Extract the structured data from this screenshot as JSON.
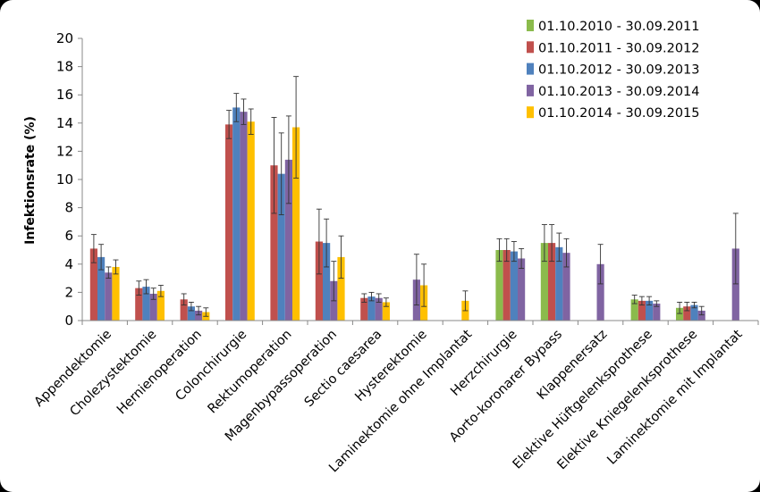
{
  "chart_data": {
    "type": "bar",
    "title": "",
    "xlabel": "",
    "ylabel": "Infektionsrate (%)",
    "ylim": [
      0,
      20
    ],
    "yticks": [
      "0",
      "2",
      "4",
      "6",
      "8",
      "10",
      "12",
      "14",
      "16",
      "18",
      "20"
    ],
    "legend_position": "top-right",
    "grid": false,
    "categories": [
      "Appendektomie",
      "Cholezystektomie",
      "Hernienoperation",
      "Colonchirurgie",
      "Rektumoperation",
      "Magenbypassoperation",
      "Sectio caesarea",
      "Hysterektomie",
      "Laminektomie ohne Implantat",
      "Herzchirurgie",
      "Aorto-koronarer Bypass",
      "Klappenersatz",
      "Elektive Hüftgelenksprothese",
      "Elektive Kniegelenksprothese",
      "Laminektomie mit Implantat"
    ],
    "series": [
      {
        "name": "01.10.2010 - 30.09.2011",
        "color": "#8bbb4c",
        "values": [
          null,
          null,
          null,
          null,
          null,
          null,
          null,
          null,
          null,
          5.0,
          5.5,
          null,
          1.5,
          0.9,
          null
        ],
        "errors": [
          null,
          null,
          null,
          null,
          null,
          null,
          null,
          null,
          null,
          0.8,
          1.3,
          null,
          0.3,
          0.4,
          null
        ]
      },
      {
        "name": "01.10.2011 - 30.09.2012",
        "color": "#c0504d",
        "values": [
          5.1,
          2.3,
          1.5,
          13.9,
          11.0,
          5.6,
          1.6,
          null,
          null,
          5.0,
          5.5,
          null,
          1.4,
          1.0,
          null
        ],
        "errors": [
          1.0,
          0.5,
          0.4,
          1.0,
          3.4,
          2.3,
          0.3,
          null,
          null,
          0.8,
          1.3,
          null,
          0.3,
          0.3,
          null
        ]
      },
      {
        "name": "01.10.2012 - 30.09.2013",
        "color": "#4f81bd",
        "values": [
          4.5,
          2.4,
          1.0,
          15.1,
          10.4,
          5.5,
          1.7,
          null,
          null,
          4.9,
          5.2,
          null,
          1.4,
          1.1,
          null
        ],
        "errors": [
          0.9,
          0.5,
          0.3,
          1.0,
          2.9,
          1.7,
          0.3,
          null,
          null,
          0.7,
          1.0,
          null,
          0.3,
          0.2,
          null
        ]
      },
      {
        "name": "01.10.2013 - 30.09.2014",
        "color": "#8064a2",
        "values": [
          3.4,
          1.9,
          0.7,
          14.8,
          11.4,
          2.8,
          1.6,
          2.9,
          null,
          4.4,
          4.8,
          4.0,
          1.2,
          0.7,
          5.1
        ],
        "errors": [
          0.4,
          0.4,
          0.3,
          0.9,
          3.1,
          1.4,
          0.3,
          1.8,
          null,
          0.7,
          1.0,
          1.4,
          0.2,
          0.3,
          2.5
        ]
      },
      {
        "name": "01.10.2014 - 30.09.2015",
        "color": "#ffc000",
        "values": [
          3.8,
          2.1,
          0.6,
          14.1,
          13.7,
          4.5,
          1.3,
          2.5,
          1.4,
          null,
          null,
          null,
          null,
          null,
          null
        ],
        "errors": [
          0.5,
          0.4,
          0.3,
          0.9,
          3.6,
          1.5,
          0.3,
          1.5,
          0.7,
          null,
          null,
          null,
          null,
          null,
          null
        ]
      }
    ]
  }
}
